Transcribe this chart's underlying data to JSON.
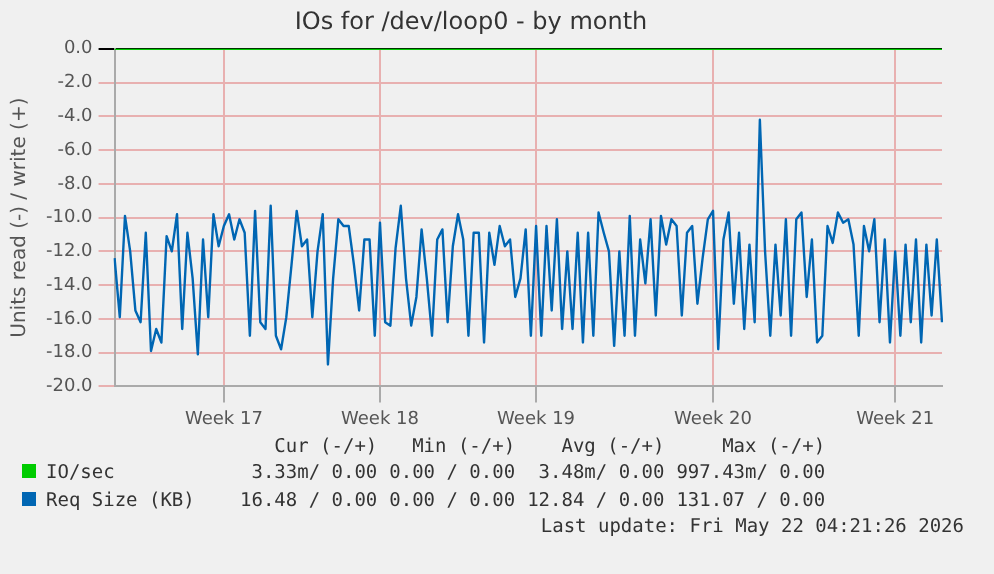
{
  "chart_data": {
    "type": "line",
    "title": "IOs for /dev/loop0 - by month",
    "ylabel": "Units read (-) / write (+)",
    "categories": [
      null,
      null,
      null,
      null,
      null,
      null,
      null,
      null,
      null,
      null,
      null,
      null,
      null,
      null,
      null,
      null,
      null,
      null,
      null,
      null,
      null,
      "Week 17",
      null,
      null,
      null,
      null,
      null,
      null,
      null,
      null,
      null,
      null,
      null,
      null,
      null,
      null,
      null,
      null,
      null,
      null,
      null,
      null,
      null,
      null,
      null,
      null,
      null,
      null,
      null,
      null,
      null,
      "Week 18",
      null,
      null,
      null,
      null,
      null,
      null,
      null,
      null,
      null,
      null,
      null,
      null,
      null,
      null,
      null,
      null,
      null,
      null,
      null,
      null,
      null,
      null,
      null,
      null,
      null,
      null,
      null,
      null,
      null,
      "Week 19",
      null,
      null,
      null,
      null,
      null,
      null,
      null,
      null,
      null,
      null,
      null,
      null,
      null,
      null,
      null,
      null,
      null,
      null,
      null,
      null,
      null,
      null,
      null,
      null,
      null,
      null,
      null,
      null,
      null,
      null,
      null,
      null,
      null,
      "Week 20",
      null,
      null,
      null,
      null,
      null,
      null,
      null,
      null,
      null,
      null,
      null,
      null,
      null,
      null,
      null,
      null,
      null,
      null,
      null,
      null,
      null,
      null,
      null,
      null,
      null,
      null,
      null,
      null,
      null,
      null,
      null,
      null,
      null,
      null,
      "Week 21",
      null,
      null,
      null,
      null,
      null,
      null,
      null,
      null,
      null
    ],
    "ylim": [
      -20,
      0
    ],
    "yticks": [
      {
        "value": 0,
        "label": "0.0"
      },
      {
        "value": -2,
        "label": "-2.0"
      },
      {
        "value": -4,
        "label": "-4.0"
      },
      {
        "value": -6,
        "label": "-6.0"
      },
      {
        "value": -8,
        "label": "-8.0"
      },
      {
        "value": -10,
        "label": "-10.0"
      },
      {
        "value": -12,
        "label": "-12.0"
      },
      {
        "value": -14,
        "label": "-14.0"
      },
      {
        "value": -16,
        "label": "-16.0"
      },
      {
        "value": -18,
        "label": "-18.0"
      },
      {
        "value": -20,
        "label": "-20.0"
      }
    ],
    "grid": true,
    "legend": "bottom",
    "marker": "none",
    "line_style": "solid",
    "series": [
      {
        "name": "IO/sec",
        "color": "#00cc00",
        "values": [
          0,
          0,
          0,
          0,
          0,
          0,
          0,
          0,
          0,
          0,
          0,
          0,
          0,
          0,
          0,
          0,
          0,
          0,
          0,
          0,
          0,
          0,
          0,
          0,
          0,
          0,
          0,
          0,
          0,
          0,
          0,
          0,
          0,
          0,
          0,
          0,
          0,
          0,
          0,
          0,
          0,
          0,
          0,
          0,
          0,
          0,
          0,
          0,
          0,
          0,
          0,
          0,
          0,
          0,
          0,
          0,
          0,
          0,
          0,
          0,
          0,
          0,
          0,
          0,
          0,
          0,
          0,
          0,
          0,
          0,
          0,
          0,
          0,
          0,
          0,
          0,
          0,
          0,
          0,
          0,
          0,
          0,
          0,
          0,
          0,
          0,
          0,
          0,
          0,
          0,
          0,
          0,
          0,
          0,
          0,
          0,
          0,
          0,
          0,
          0,
          0,
          0,
          0,
          0,
          0,
          0,
          0,
          0,
          0,
          0,
          0,
          0,
          0,
          0,
          0,
          0,
          0,
          0,
          0,
          0,
          0,
          0,
          0,
          0,
          0,
          0,
          0,
          0,
          0,
          0,
          0,
          0,
          0,
          0,
          0,
          0,
          0,
          0,
          0,
          0,
          0,
          0,
          0,
          0,
          0,
          0,
          0,
          0,
          0,
          0,
          0,
          0,
          0,
          0,
          0,
          0,
          0,
          0,
          0,
          0
        ]
      },
      {
        "name": "Req Size (KB)",
        "color": "#0066b3",
        "values": [
          -12.4,
          -15.9,
          -9.9,
          -12.0,
          -15.5,
          -16.2,
          -10.9,
          -17.9,
          -16.6,
          -17.4,
          -11.1,
          -12.0,
          -9.8,
          -16.6,
          -10.9,
          -13.6,
          -18.1,
          -11.3,
          -15.9,
          -9.8,
          -11.7,
          -10.5,
          -9.8,
          -11.3,
          -10.1,
          -10.9,
          -17.0,
          -9.6,
          -16.2,
          -16.6,
          -9.3,
          -17.0,
          -17.8,
          -15.9,
          -12.8,
          -9.6,
          -11.7,
          -11.3,
          -15.9,
          -12.0,
          -9.8,
          -18.7,
          -13.6,
          -10.1,
          -10.5,
          -10.5,
          -12.8,
          -15.5,
          -11.3,
          -11.3,
          -17.0,
          -10.3,
          -16.2,
          -16.4,
          -11.8,
          -9.3,
          -13.6,
          -16.4,
          -14.7,
          -10.7,
          -13.6,
          -17.0,
          -11.3,
          -10.7,
          -16.2,
          -11.7,
          -9.8,
          -11.3,
          -17.0,
          -10.9,
          -10.9,
          -17.4,
          -10.9,
          -12.8,
          -10.5,
          -11.7,
          -11.3,
          -14.7,
          -13.6,
          -10.7,
          -17.0,
          -10.5,
          -17.0,
          -10.5,
          -15.5,
          -10.1,
          -16.6,
          -12.0,
          -16.6,
          -10.9,
          -17.4,
          -10.9,
          -17.0,
          -9.7,
          -10.9,
          -12.0,
          -17.6,
          -12.0,
          -17.0,
          -9.9,
          -17.0,
          -11.3,
          -13.9,
          -10.1,
          -15.8,
          -9.9,
          -11.6,
          -10.1,
          -10.5,
          -15.8,
          -10.9,
          -10.5,
          -15.1,
          -12.4,
          -10.1,
          -9.6,
          -17.8,
          -11.3,
          -9.7,
          -15.1,
          -10.9,
          -16.6,
          -11.6,
          -16.2,
          -4.2,
          -12.0,
          -17.0,
          -11.6,
          -15.8,
          -10.1,
          -17.0,
          -10.1,
          -9.7,
          -14.7,
          -11.3,
          -17.4,
          -17.0,
          -10.5,
          -11.5,
          -9.7,
          -10.3,
          -10.1,
          -11.6,
          -17.0,
          -10.5,
          -12.0,
          -10.1,
          -16.2,
          -11.3,
          -17.4,
          -12.0,
          -17.0,
          -11.6,
          -16.2,
          -11.3,
          -17.4,
          -11.6,
          -15.8,
          -11.3,
          -16.2
        ]
      }
    ],
    "annotations": [
      "Cur (-/+)",
      "Min (-/+)",
      "Avg (-/+)",
      "Max (-/+)",
      "3.33m/ 0.00",
      "0.00 / 0.00",
      "3.48m/ 0.00",
      "997.43m/ 0.00",
      "16.48 / 0.00",
      "0.00 / 0.00",
      "12.84 / 0.00",
      "131.07 / 0.00",
      "Last update: Fri May 22 04:21:26 2026"
    ]
  }
}
